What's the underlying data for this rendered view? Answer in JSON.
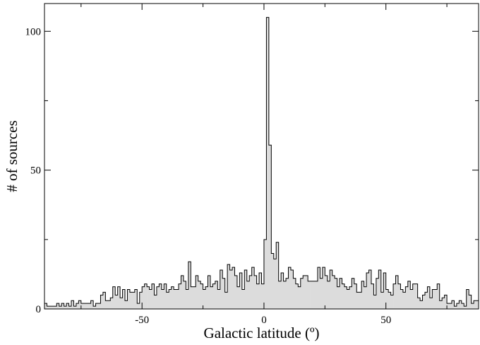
{
  "chart_data": {
    "type": "bar",
    "title": "",
    "xlabel": "Galactic latitude (º)",
    "ylabel": "# of sources",
    "xlim": [
      -90,
      88
    ],
    "ylim": [
      0,
      110
    ],
    "bin_width": 1,
    "x_ticks": [
      -50,
      0,
      50
    ],
    "x_tick_labels": [
      "-50",
      "0",
      "50"
    ],
    "y_ticks": [
      0,
      50,
      100
    ],
    "y_tick_labels": [
      "0",
      "50",
      "100"
    ],
    "grid": false,
    "legend": "none",
    "colors": {
      "fill": "#dcdcdc",
      "stroke": "#000000"
    },
    "bin_starts": [
      -90,
      -89,
      -88,
      -87,
      -86,
      -85,
      -84,
      -83,
      -82,
      -81,
      -80,
      -79,
      -78,
      -77,
      -76,
      -75,
      -74,
      -73,
      -72,
      -71,
      -70,
      -69,
      -68,
      -67,
      -66,
      -65,
      -64,
      -63,
      -62,
      -61,
      -60,
      -59,
      -58,
      -57,
      -56,
      -55,
      -54,
      -53,
      -52,
      -51,
      -50,
      -49,
      -48,
      -47,
      -46,
      -45,
      -44,
      -43,
      -42,
      -41,
      -40,
      -39,
      -38,
      -37,
      -36,
      -35,
      -34,
      -33,
      -32,
      -31,
      -30,
      -29,
      -28,
      -27,
      -26,
      -25,
      -24,
      -23,
      -22,
      -21,
      -20,
      -19,
      -18,
      -17,
      -16,
      -15,
      -14,
      -13,
      -12,
      -11,
      -10,
      -9,
      -8,
      -7,
      -6,
      -5,
      -4,
      -3,
      -2,
      -1,
      0,
      1,
      2,
      3,
      4,
      5,
      6,
      7,
      8,
      9,
      10,
      11,
      12,
      13,
      14,
      15,
      16,
      17,
      18,
      19,
      20,
      21,
      22,
      23,
      24,
      25,
      26,
      27,
      28,
      29,
      30,
      31,
      32,
      33,
      34,
      35,
      36,
      37,
      38,
      39,
      40,
      41,
      42,
      43,
      44,
      45,
      46,
      47,
      48,
      49,
      50,
      51,
      52,
      53,
      54,
      55,
      56,
      57,
      58,
      59,
      60,
      61,
      62,
      63,
      64,
      65,
      66,
      67,
      68,
      69,
      70,
      71,
      72,
      73,
      74,
      75,
      76,
      77,
      78,
      79,
      80,
      81,
      82,
      83,
      84,
      85,
      86,
      87
    ],
    "values": [
      2,
      1,
      1,
      1,
      1,
      2,
      1,
      2,
      1,
      2,
      1,
      3,
      1,
      2,
      3,
      2,
      2,
      2,
      2,
      3,
      1,
      2,
      2,
      5,
      6,
      3,
      3,
      4,
      8,
      5,
      8,
      4,
      7,
      3,
      7,
      6,
      6,
      7,
      2,
      6,
      8,
      9,
      8,
      7,
      9,
      5,
      8,
      9,
      7,
      9,
      6,
      7,
      8,
      7,
      7,
      9,
      12,
      10,
      7,
      17,
      8,
      8,
      12,
      10,
      9,
      7,
      8,
      12,
      8,
      9,
      10,
      7,
      14,
      11,
      6,
      16,
      14,
      15,
      12,
      8,
      13,
      7,
      14,
      10,
      12,
      15,
      12,
      9,
      13,
      9,
      25,
      105,
      59,
      20,
      18,
      24,
      10,
      13,
      10,
      11,
      15,
      14,
      11,
      9,
      8,
      11,
      12,
      12,
      10,
      10,
      10,
      10,
      15,
      11,
      15,
      12,
      10,
      14,
      12,
      11,
      8,
      11,
      9,
      8,
      7,
      8,
      11,
      9,
      6,
      6,
      10,
      8,
      13,
      14,
      9,
      5,
      11,
      14,
      6,
      13,
      7,
      6,
      5,
      9,
      12,
      9,
      7,
      6,
      8,
      10,
      7,
      9,
      9,
      4,
      3,
      5,
      6,
      8,
      4,
      7,
      7,
      9,
      3,
      4,
      5,
      2,
      2,
      3,
      1,
      2,
      3,
      2,
      1,
      7,
      5,
      2,
      3,
      3
    ]
  }
}
